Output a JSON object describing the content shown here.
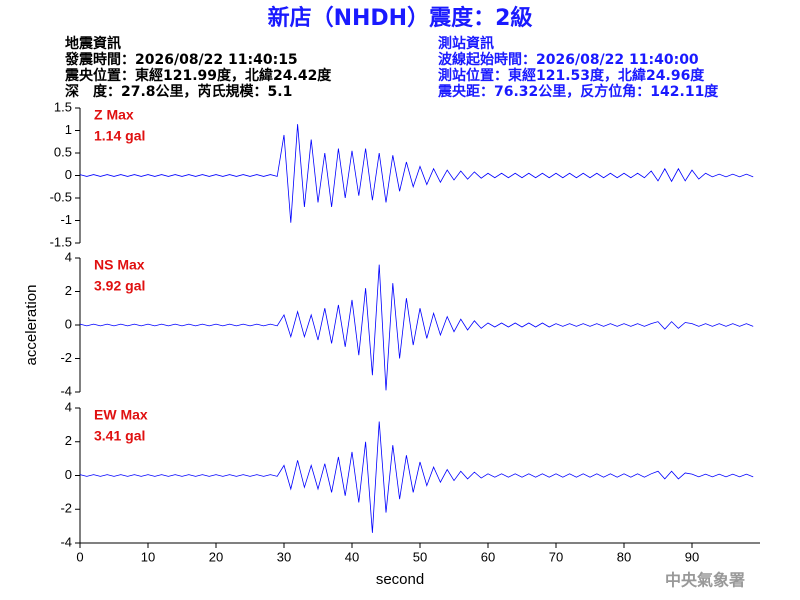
{
  "header": {
    "title": "新店（NHDH）震度：2級",
    "left": [
      "地震資訊",
      "發震時間：2026/08/22 11:40:15",
      "震央位置：東經121.99度，北緯24.42度",
      "深　度：27.8公里，芮氏規模：5.1"
    ],
    "right": [
      "測站資訊",
      "波線起始時間：2026/08/22 11:40:00",
      "測站位置：東經121.53度，北緯24.96度",
      "震央距：76.32公里，反方位角：142.11度"
    ]
  },
  "footer": "中央氣象署",
  "chart_data": [
    {
      "type": "line",
      "annotation_name": "Z Max",
      "annotation_value": "1.14 gal",
      "color": "#0000ff",
      "xlim": [
        0,
        100
      ],
      "ylim": [
        -1.5,
        1.5
      ],
      "yticks": [
        1.5,
        1,
        0.5,
        0,
        -0.5,
        -1,
        -1.5
      ],
      "x": [
        0,
        1,
        2,
        3,
        4,
        5,
        6,
        7,
        8,
        9,
        10,
        11,
        12,
        13,
        14,
        15,
        16,
        17,
        18,
        19,
        20,
        21,
        22,
        23,
        24,
        25,
        26,
        27,
        28,
        29,
        30,
        31,
        32,
        33,
        34,
        35,
        36,
        37,
        38,
        39,
        40,
        41,
        42,
        43,
        44,
        45,
        46,
        47,
        48,
        49,
        50,
        51,
        52,
        53,
        54,
        55,
        56,
        57,
        58,
        59,
        60,
        61,
        62,
        63,
        64,
        65,
        66,
        67,
        68,
        69,
        70,
        71,
        72,
        73,
        74,
        75,
        76,
        77,
        78,
        79,
        80,
        81,
        82,
        83,
        84,
        85,
        86,
        87,
        88,
        89,
        90,
        91,
        92,
        93,
        94,
        95,
        96,
        97,
        98,
        99
      ],
      "values": [
        0.02,
        -0.02,
        0.02,
        -0.02,
        0.02,
        -0.02,
        0.02,
        -0.02,
        0.02,
        -0.02,
        0.02,
        -0.02,
        0.02,
        -0.02,
        0.02,
        -0.02,
        0.02,
        -0.02,
        0.02,
        -0.02,
        0.02,
        -0.02,
        0.02,
        -0.02,
        0.02,
        -0.02,
        0.02,
        -0.02,
        0.02,
        -0.02,
        0.9,
        -1.05,
        1.14,
        -0.7,
        0.8,
        -0.6,
        0.5,
        -0.7,
        0.6,
        -0.5,
        0.55,
        -0.45,
        0.6,
        -0.55,
        0.5,
        -0.6,
        0.45,
        -0.35,
        0.3,
        -0.25,
        0.2,
        -0.2,
        0.15,
        -0.15,
        0.12,
        -0.1,
        0.1,
        -0.08,
        0.08,
        -0.06,
        0.05,
        -0.05,
        0.05,
        -0.05,
        0.05,
        -0.05,
        0.05,
        -0.05,
        0.05,
        -0.05,
        0.05,
        -0.05,
        0.05,
        -0.05,
        0.05,
        -0.05,
        0.05,
        -0.05,
        0.05,
        -0.05,
        0.05,
        -0.05,
        0.05,
        -0.05,
        0.1,
        -0.12,
        0.15,
        -0.13,
        0.15,
        -0.12,
        0.12,
        -0.08,
        0.05,
        -0.03,
        0.03,
        -0.03,
        0.03,
        -0.03,
        0.03,
        -0.03
      ]
    },
    {
      "type": "line",
      "annotation_name": "NS Max",
      "annotation_value": "3.92 gal",
      "color": "#0000ff",
      "ylabel": "acceleration",
      "xlim": [
        0,
        100
      ],
      "ylim": [
        -4,
        4
      ],
      "yticks": [
        4,
        2,
        0,
        -2,
        -4
      ],
      "x": [
        0,
        1,
        2,
        3,
        4,
        5,
        6,
        7,
        8,
        9,
        10,
        11,
        12,
        13,
        14,
        15,
        16,
        17,
        18,
        19,
        20,
        21,
        22,
        23,
        24,
        25,
        26,
        27,
        28,
        29,
        30,
        31,
        32,
        33,
        34,
        35,
        36,
        37,
        38,
        39,
        40,
        41,
        42,
        43,
        44,
        45,
        46,
        47,
        48,
        49,
        50,
        51,
        52,
        53,
        54,
        55,
        56,
        57,
        58,
        59,
        60,
        61,
        62,
        63,
        64,
        65,
        66,
        67,
        68,
        69,
        70,
        71,
        72,
        73,
        74,
        75,
        76,
        77,
        78,
        79,
        80,
        81,
        82,
        83,
        84,
        85,
        86,
        87,
        88,
        89,
        90,
        91,
        92,
        93,
        94,
        95,
        96,
        97,
        98,
        99
      ],
      "values": [
        0.05,
        -0.05,
        0.05,
        -0.05,
        0.05,
        -0.05,
        0.05,
        -0.05,
        0.05,
        -0.05,
        0.05,
        -0.05,
        0.05,
        -0.05,
        0.05,
        -0.05,
        0.05,
        -0.05,
        0.05,
        -0.05,
        0.05,
        -0.05,
        0.05,
        -0.05,
        0.05,
        -0.05,
        0.05,
        -0.05,
        0.05,
        -0.05,
        0.6,
        -0.7,
        0.8,
        -0.7,
        0.6,
        -0.9,
        1.0,
        -1.1,
        1.2,
        -1.3,
        1.5,
        -1.8,
        2.2,
        -3.0,
        3.6,
        -3.9,
        2.5,
        -2.0,
        1.6,
        -1.2,
        1.0,
        -0.8,
        0.7,
        -0.6,
        0.5,
        -0.4,
        0.35,
        -0.3,
        0.25,
        -0.2,
        0.12,
        -0.12,
        0.12,
        -0.12,
        0.12,
        -0.12,
        0.12,
        -0.12,
        0.12,
        -0.12,
        0.08,
        -0.08,
        0.08,
        -0.08,
        0.08,
        -0.08,
        0.08,
        -0.08,
        0.08,
        -0.08,
        0.08,
        -0.08,
        0.08,
        -0.08,
        0.08,
        0.2,
        -0.25,
        0.2,
        -0.2,
        0.15,
        0.08,
        -0.08,
        0.08,
        -0.08,
        0.08,
        -0.08,
        0.08,
        -0.08,
        0.08,
        -0.08
      ]
    },
    {
      "type": "line",
      "annotation_name": "EW Max",
      "annotation_value": "3.41 gal",
      "color": "#0000ff",
      "xlabel": "second",
      "xlim": [
        0,
        100
      ],
      "xticks": [
        0,
        10,
        20,
        30,
        40,
        50,
        60,
        70,
        80,
        90
      ],
      "ylim": [
        -4,
        4
      ],
      "yticks": [
        4,
        2,
        0,
        -2,
        -4
      ],
      "x": [
        0,
        1,
        2,
        3,
        4,
        5,
        6,
        7,
        8,
        9,
        10,
        11,
        12,
        13,
        14,
        15,
        16,
        17,
        18,
        19,
        20,
        21,
        22,
        23,
        24,
        25,
        26,
        27,
        28,
        29,
        30,
        31,
        32,
        33,
        34,
        35,
        36,
        37,
        38,
        39,
        40,
        41,
        42,
        43,
        44,
        45,
        46,
        47,
        48,
        49,
        50,
        51,
        52,
        53,
        54,
        55,
        56,
        57,
        58,
        59,
        60,
        61,
        62,
        63,
        64,
        65,
        66,
        67,
        68,
        69,
        70,
        71,
        72,
        73,
        74,
        75,
        76,
        77,
        78,
        79,
        80,
        81,
        82,
        83,
        84,
        85,
        86,
        87,
        88,
        89,
        90,
        91,
        92,
        93,
        94,
        95,
        96,
        97,
        98,
        99
      ],
      "values": [
        0.05,
        -0.05,
        0.05,
        -0.05,
        0.05,
        -0.05,
        0.05,
        -0.05,
        0.05,
        -0.05,
        0.05,
        -0.05,
        0.05,
        -0.05,
        0.05,
        -0.05,
        0.05,
        -0.05,
        0.05,
        -0.05,
        0.05,
        -0.05,
        0.05,
        -0.05,
        0.05,
        -0.05,
        0.05,
        -0.05,
        0.05,
        -0.05,
        0.6,
        -0.8,
        0.9,
        -0.7,
        0.6,
        -0.8,
        0.7,
        -1.0,
        1.1,
        -1.2,
        1.4,
        -1.6,
        2.0,
        -3.4,
        3.2,
        -2.2,
        1.8,
        -1.4,
        1.2,
        -1.0,
        0.8,
        -0.6,
        0.5,
        -0.4,
        0.35,
        -0.3,
        0.25,
        -0.2,
        0.2,
        -0.15,
        0.1,
        -0.1,
        0.1,
        -0.1,
        0.1,
        -0.1,
        0.1,
        -0.1,
        0.1,
        -0.1,
        0.1,
        -0.1,
        0.1,
        -0.1,
        0.1,
        -0.1,
        0.1,
        -0.1,
        0.1,
        -0.1,
        0.1,
        -0.1,
        0.1,
        -0.1,
        0.1,
        0.25,
        -0.2,
        0.25,
        -0.2,
        0.15,
        0.08,
        -0.08,
        0.08,
        -0.08,
        0.08,
        -0.08,
        0.08,
        -0.08,
        0.08,
        -0.08
      ]
    }
  ]
}
